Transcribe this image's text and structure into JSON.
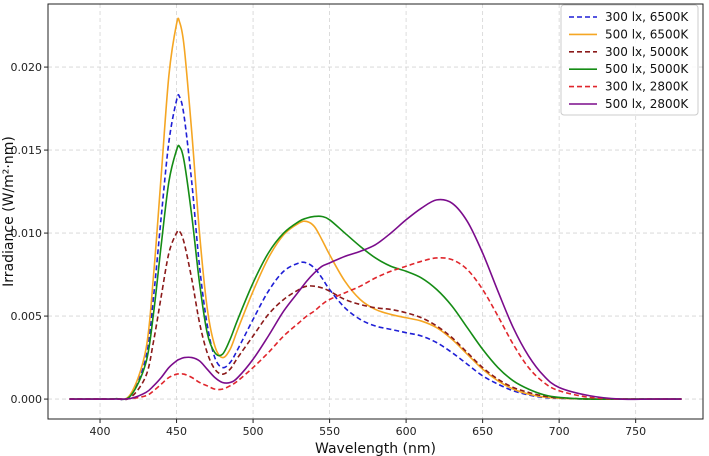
{
  "chart_data": {
    "type": "line",
    "title": "",
    "xlabel": "Wavelength (nm)",
    "ylabel": "Irradiance (W/m²·nm)",
    "xlim": [
      366,
      794
    ],
    "ylim": [
      -0.0012,
      0.0238
    ],
    "xticks": [
      400,
      450,
      500,
      550,
      600,
      650,
      700,
      750
    ],
    "yticks": [
      0.0,
      0.005,
      0.01,
      0.015,
      0.02
    ],
    "ytick_labels": [
      "0.000",
      "0.005",
      "0.010",
      "0.015",
      "0.020"
    ],
    "grid": true,
    "legend_position": "top-right",
    "x": [
      380,
      400,
      410,
      420,
      430,
      435,
      440,
      445,
      450,
      452,
      455,
      460,
      465,
      470,
      475,
      480,
      485,
      490,
      500,
      510,
      520,
      530,
      535,
      540,
      545,
      550,
      560,
      570,
      580,
      590,
      600,
      610,
      620,
      630,
      640,
      650,
      660,
      670,
      680,
      690,
      700,
      720,
      740,
      760,
      780
    ],
    "series": [
      {
        "name": "300 lx, 6500K",
        "color": "#1f1fd6",
        "dash": "dashed",
        "values": [
          0,
          0,
          2e-05,
          0.0002,
          0.0025,
          0.0062,
          0.011,
          0.0155,
          0.018,
          0.0182,
          0.017,
          0.013,
          0.008,
          0.0045,
          0.0025,
          0.0019,
          0.0022,
          0.003,
          0.0048,
          0.0065,
          0.0077,
          0.0082,
          0.0082,
          0.0079,
          0.0073,
          0.0066,
          0.0055,
          0.0048,
          0.0044,
          0.0042,
          0.004,
          0.0038,
          0.0034,
          0.0028,
          0.0021,
          0.0014,
          0.0009,
          0.0005,
          0.00025,
          0.0001,
          4e-05,
          0,
          0,
          0,
          0
        ]
      },
      {
        "name": "500 lx, 6500K",
        "color": "#f5a623",
        "dash": "solid",
        "values": [
          0,
          0,
          2e-05,
          0.0003,
          0.003,
          0.0075,
          0.0135,
          0.0195,
          0.0226,
          0.0227,
          0.0212,
          0.016,
          0.01,
          0.0055,
          0.0032,
          0.0025,
          0.003,
          0.0042,
          0.0065,
          0.0085,
          0.0099,
          0.0106,
          0.0107,
          0.0104,
          0.0096,
          0.0087,
          0.0071,
          0.006,
          0.0054,
          0.0051,
          0.0049,
          0.0047,
          0.0043,
          0.0036,
          0.0027,
          0.0018,
          0.0011,
          0.0006,
          0.0003,
          0.00013,
          5e-05,
          0,
          0,
          0,
          0
        ]
      },
      {
        "name": "300 lx, 5000K",
        "color": "#8b1a1a",
        "dash": "dashed",
        "values": [
          0,
          0,
          1e-05,
          0.0001,
          0.0014,
          0.0035,
          0.0062,
          0.0088,
          0.01,
          0.0101,
          0.0094,
          0.0072,
          0.0046,
          0.0028,
          0.0018,
          0.0015,
          0.0018,
          0.0025,
          0.0038,
          0.0051,
          0.006,
          0.0066,
          0.0068,
          0.0068,
          0.0067,
          0.0065,
          0.006,
          0.0057,
          0.0055,
          0.0054,
          0.0052,
          0.0049,
          0.0044,
          0.0037,
          0.0028,
          0.0019,
          0.0012,
          0.0007,
          0.0004,
          0.00018,
          8e-05,
          0,
          0,
          0,
          0
        ]
      },
      {
        "name": "500 lx, 5000K",
        "color": "#158c15",
        "dash": "solid",
        "values": [
          0,
          0,
          2e-05,
          0.0002,
          0.0022,
          0.0052,
          0.0093,
          0.0131,
          0.015,
          0.0152,
          0.0143,
          0.011,
          0.007,
          0.004,
          0.0028,
          0.0027,
          0.0036,
          0.0048,
          0.007,
          0.0088,
          0.01,
          0.0107,
          0.0109,
          0.011,
          0.011,
          0.0108,
          0.01,
          0.0092,
          0.0085,
          0.008,
          0.0077,
          0.0073,
          0.0066,
          0.0056,
          0.0043,
          0.003,
          0.0019,
          0.0011,
          0.0006,
          0.00026,
          0.0001,
          0,
          0,
          0,
          0
        ]
      },
      {
        "name": "300 lx, 2800K",
        "color": "#e0262c",
        "dash": "dashed",
        "values": [
          0,
          0,
          0,
          3e-05,
          0.0002,
          0.0005,
          0.0009,
          0.0013,
          0.0015,
          0.0015,
          0.0015,
          0.0013,
          0.001,
          0.0008,
          0.0006,
          0.0006,
          0.0008,
          0.0011,
          0.0019,
          0.0028,
          0.0038,
          0.0046,
          0.005,
          0.0053,
          0.0057,
          0.006,
          0.0064,
          0.0068,
          0.0073,
          0.0077,
          0.008,
          0.0083,
          0.0085,
          0.0084,
          0.0078,
          0.0066,
          0.005,
          0.0033,
          0.0019,
          0.001,
          0.0005,
          0.0001,
          0,
          0,
          0
        ]
      },
      {
        "name": "500 lx, 2800K",
        "color": "#7b0c8c",
        "dash": "solid",
        "values": [
          0,
          0,
          0,
          4e-05,
          0.0004,
          0.0008,
          0.0013,
          0.0019,
          0.0023,
          0.0024,
          0.0025,
          0.0025,
          0.0023,
          0.0018,
          0.0013,
          0.001,
          0.001,
          0.0013,
          0.0024,
          0.0038,
          0.0053,
          0.0065,
          0.0071,
          0.0076,
          0.008,
          0.0082,
          0.0086,
          0.0089,
          0.0093,
          0.01,
          0.0108,
          0.0115,
          0.012,
          0.0118,
          0.0107,
          0.0088,
          0.0065,
          0.0043,
          0.0026,
          0.0014,
          0.0007,
          0.0002,
          0,
          0,
          0
        ]
      }
    ]
  }
}
